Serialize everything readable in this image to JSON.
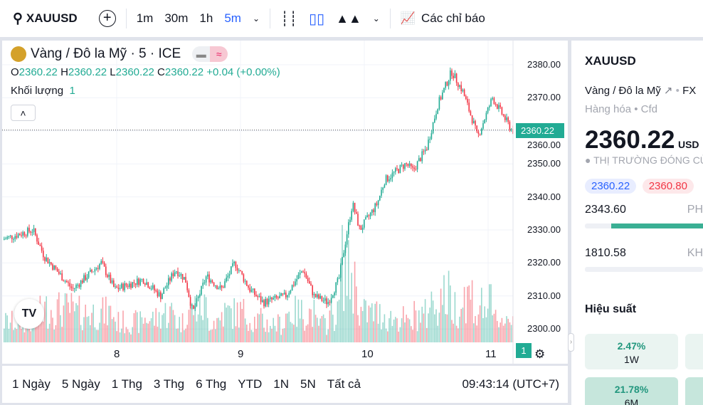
{
  "toolbar": {
    "symbol": "XAUUSD",
    "intervals": [
      "1m",
      "30m",
      "1h",
      "5m"
    ],
    "active_interval": "5m",
    "indicators": "Các chỉ báo"
  },
  "legend": {
    "title": "Vàng / Đô la Mỹ · 5 · ICE",
    "o": "2360.22",
    "h": "2360.22",
    "l": "2360.22",
    "c": "2360.22",
    "change": "+0.04 (+0.00%)",
    "volume_label": "Khối lượng",
    "volume_value": "1"
  },
  "colors": {
    "up": "#22ab94",
    "down": "#f23645",
    "accent": "#2962ff"
  },
  "chart_data": {
    "type": "candlestick",
    "ylim": [
      2297,
      2383
    ],
    "y_ticks": [
      "2380.00",
      "2370.00",
      "2360.00",
      "2350.00",
      "2340.00",
      "2330.00",
      "2320.00",
      "2310.00",
      "2300.00"
    ],
    "x_ticks": [
      "8",
      "9",
      "10",
      "11"
    ],
    "last_price": "2360.22",
    "last_volume": "1",
    "close_path": [
      [
        7.06,
        2327
      ],
      [
        7.32,
        2330
      ],
      [
        7.41,
        2322
      ],
      [
        7.64,
        2312
      ],
      [
        7.87,
        2320
      ],
      [
        7.98,
        2312
      ],
      [
        8.21,
        2315
      ],
      [
        8.35,
        2310
      ],
      [
        8.47,
        2318
      ],
      [
        8.55,
        2315
      ],
      [
        8.61,
        2305
      ],
      [
        8.72,
        2316
      ],
      [
        8.84,
        2312
      ],
      [
        8.95,
        2320
      ],
      [
        9.07,
        2312
      ],
      [
        9.18,
        2308
      ],
      [
        9.36,
        2310
      ],
      [
        9.5,
        2318
      ],
      [
        9.59,
        2310
      ],
      [
        9.7,
        2308
      ],
      [
        9.79,
        2315
      ],
      [
        9.85,
        2328
      ],
      [
        9.9,
        2338
      ],
      [
        9.96,
        2330
      ],
      [
        10.1,
        2338
      ],
      [
        10.16,
        2345
      ],
      [
        10.33,
        2350
      ],
      [
        10.39,
        2348
      ],
      [
        10.5,
        2355
      ],
      [
        10.59,
        2368
      ],
      [
        10.7,
        2378
      ],
      [
        10.79,
        2372
      ],
      [
        10.88,
        2362
      ],
      [
        10.91,
        2358
      ],
      [
        11.03,
        2370
      ],
      [
        11.11,
        2365
      ],
      [
        11.19,
        2360
      ]
    ]
  },
  "ranges": [
    "1 Ngày",
    "5 Ngày",
    "1 Thg",
    "3 Thg",
    "6 Thg",
    "YTD",
    "1N",
    "5N",
    "Tất cả"
  ],
  "clock": "09:43:14 (UTC+7)",
  "panel": {
    "symbol": "XAUUSD",
    "name": "Vàng / Đô la Mỹ",
    "exchange": "FX",
    "category": "Hàng hóa",
    "type": "Cfd",
    "price": "2360.22",
    "currency": "USD",
    "status": "THỊ TRƯỜNG ĐÓNG CỬ",
    "bid": "2360.22",
    "ask": "2360.80",
    "day_low": "2343.60",
    "day_label": "PH",
    "year_low": "1810.58",
    "year_label": "KH",
    "perf_title": "Hiệu suất",
    "perf": [
      {
        "value": "2.47%",
        "label": "1W"
      },
      {
        "value": "21.78%",
        "label": "6M"
      }
    ]
  }
}
